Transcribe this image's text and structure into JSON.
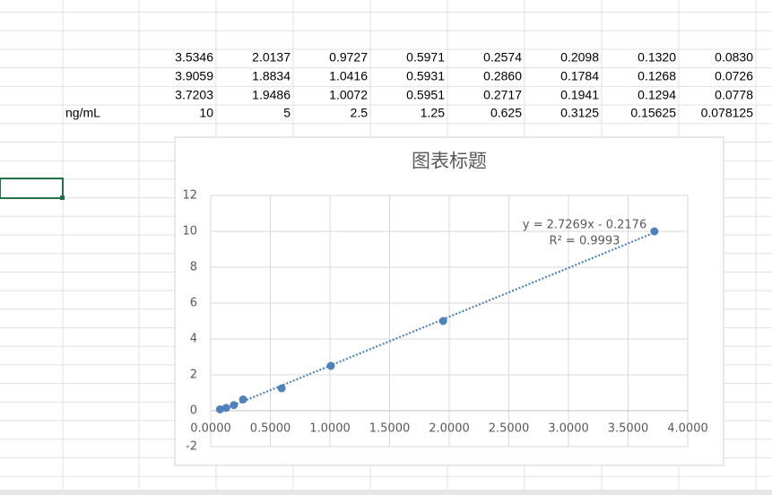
{
  "table": {
    "unit_label": "ng/mL",
    "rows": [
      [
        "3.5346",
        "2.0137",
        "0.9727",
        "0.5971",
        "0.2574",
        "0.2098",
        "0.1320",
        "0.0830"
      ],
      [
        "3.9059",
        "1.8834",
        "1.0416",
        "0.5931",
        "0.2860",
        "0.1784",
        "0.1268",
        "0.0726"
      ],
      [
        "3.7203",
        "1.9486",
        "1.0072",
        "0.5951",
        "0.2717",
        "0.1941",
        "0.1294",
        "0.0778"
      ]
    ]
  },
  "chart_data": {
    "type": "scatter",
    "title": "图表标题",
    "x": [
      3.7203,
      1.9486,
      1.0072,
      0.5951,
      0.2717,
      0.1941,
      0.1294,
      0.0778
    ],
    "y": [
      10,
      5,
      2.5,
      1.25,
      0.625,
      0.3125,
      0.15625,
      0.078125
    ],
    "color": "#4f81bd",
    "xlim": [
      0,
      4
    ],
    "ylim": [
      -2,
      12
    ],
    "xticks": [
      {
        "value": 0,
        "label": "0.0000"
      },
      {
        "value": 0.5,
        "label": "0.5000"
      },
      {
        "value": 1,
        "label": "1.0000"
      },
      {
        "value": 1.5,
        "label": "1.5000"
      },
      {
        "value": 2,
        "label": "2.0000"
      },
      {
        "value": 2.5,
        "label": "2.5000"
      },
      {
        "value": 3,
        "label": "3.0000"
      },
      {
        "value": 3.5,
        "label": "3.5000"
      },
      {
        "value": 4,
        "label": "4.0000"
      }
    ],
    "yticks": [
      -2,
      0,
      2,
      4,
      6,
      8,
      10,
      12
    ],
    "grid": true,
    "trendline": {
      "slope": 2.7269,
      "intercept": -0.2176,
      "label": "y = 2.7269x - 0.2176",
      "r2_label": "R² = 0.9993"
    }
  }
}
